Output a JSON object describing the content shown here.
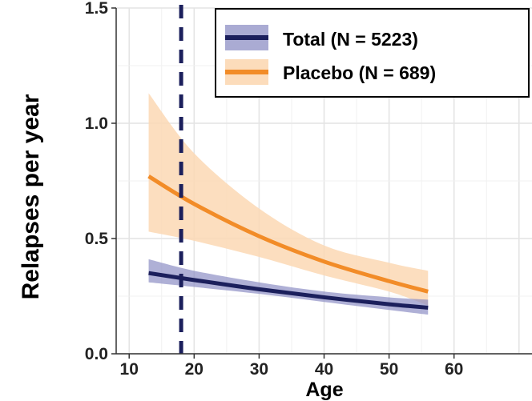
{
  "chart_data": {
    "type": "line",
    "xlabel": "Age",
    "ylabel": "Relapses per year",
    "xlim": [
      8,
      72
    ],
    "ylim": [
      0,
      1.5
    ],
    "xticks": [
      10,
      20,
      30,
      40,
      50,
      60
    ],
    "yticks": [
      "0.0",
      "0.5",
      "1.0",
      "1.5"
    ],
    "grid": true,
    "legend_position": "top-right",
    "reference_line": {
      "x": 18,
      "style": "dashed",
      "color": "#1b1f5c"
    },
    "series": [
      {
        "name": "Total (N = 5223)",
        "color": "#1b1f5c",
        "band_color": "#8d8fc4",
        "x": [
          13,
          20,
          30,
          40,
          50,
          56
        ],
        "y": [
          0.35,
          0.32,
          0.28,
          0.245,
          0.215,
          0.2
        ],
        "lower": [
          0.31,
          0.29,
          0.26,
          0.225,
          0.19,
          0.17
        ],
        "upper": [
          0.41,
          0.36,
          0.31,
          0.27,
          0.245,
          0.235
        ]
      },
      {
        "name": "Placebo (N = 689)",
        "color": "#f28c28",
        "band_color": "#fcd8b4",
        "x": [
          13,
          20,
          30,
          40,
          50,
          56
        ],
        "y": [
          0.77,
          0.65,
          0.51,
          0.4,
          0.315,
          0.27
        ],
        "lower": [
          0.53,
          0.49,
          0.42,
          0.34,
          0.27,
          0.21
        ],
        "upper": [
          1.13,
          0.87,
          0.63,
          0.47,
          0.395,
          0.36
        ]
      }
    ]
  }
}
